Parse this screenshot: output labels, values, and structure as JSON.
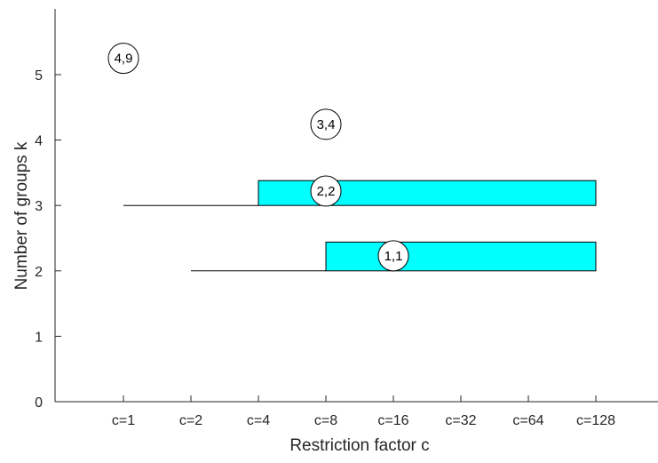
{
  "chart_data": {
    "type": "bar",
    "xlabel": "Restriction factor c",
    "ylabel": "Number of groups k",
    "categories": [
      "c=1",
      "c=2",
      "c=4",
      "c=8",
      "c=16",
      "c=32",
      "c=64",
      "c=128"
    ],
    "yticks": [
      0,
      1,
      2,
      3,
      4,
      5
    ],
    "ylim": [
      0,
      5.95
    ],
    "grid": false,
    "colors": {
      "bar": "#00ffff",
      "line": "#000000"
    },
    "segments": [
      {
        "k": 3,
        "line_from": "c=1",
        "bar_from": "c=4",
        "to": "c=128",
        "height": 0.38
      },
      {
        "k": 2,
        "line_from": "c=2",
        "bar_from": "c=8",
        "to": "c=128",
        "height": 0.44
      }
    ],
    "annotations": [
      {
        "label": "4,9",
        "x": "c=1",
        "y": 5.25
      },
      {
        "label": "3,4",
        "x": "c=8",
        "y": 4.24
      },
      {
        "label": "2,2",
        "x": "c=8",
        "y": 3.22
      },
      {
        "label": "1,1",
        "x": "c=16",
        "y": 2.23
      }
    ]
  }
}
